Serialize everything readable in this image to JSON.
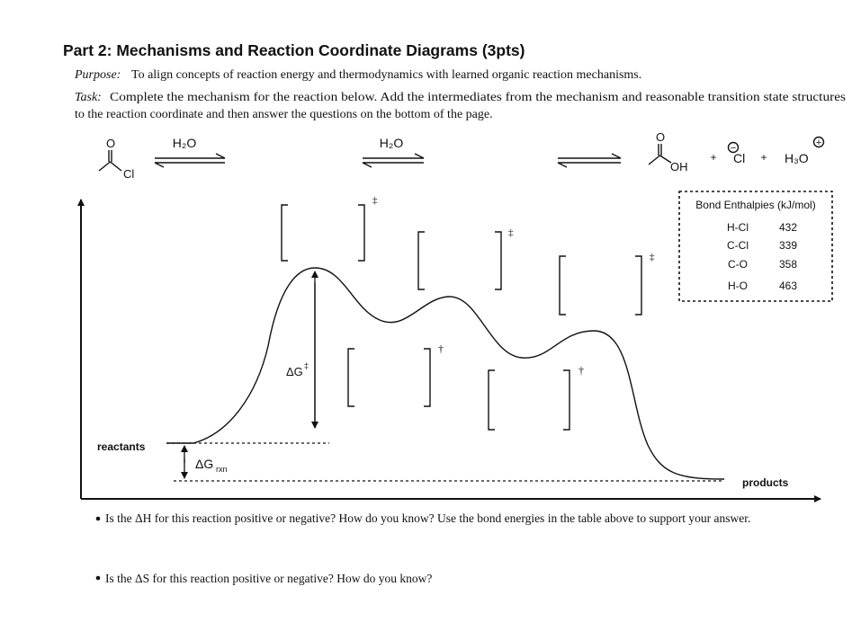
{
  "header": {
    "title": "Part 2: Mechanisms and Reaction Coordinate Diagrams (3pts)"
  },
  "purpose": {
    "label": "Purpose:",
    "text": "To align concepts of reaction energy and thermodynamics with learned organic reaction mechanisms."
  },
  "task": {
    "label": "Task:",
    "line_1": "Complete the mechanism for the reaction below.  Add the intermediates from the mechanism and reasonable transition state structures",
    "line_2": "to the reaction coordinate and then answer the questions on the bottom of the page."
  },
  "reaction": {
    "reactant": {
      "o": "O",
      "cl": "Cl"
    },
    "reagent_1": "H₂O",
    "reagent_2": "H₂O",
    "product": {
      "o": "O",
      "oh": "OH"
    },
    "plus_1": "+",
    "chloride": "Cl",
    "chloride_charge": "−",
    "plus_2": "+",
    "hydronium": "H₃O",
    "hydronium_charge": "+"
  },
  "bond_table": {
    "title": "Bond Enthalpies (kJ/mol)",
    "rows": [
      [
        "H-Cl",
        "432"
      ],
      [
        "C-Cl",
        "339"
      ],
      [
        "C-O",
        "358"
      ],
      [
        "H-O",
        "463"
      ]
    ]
  },
  "diagram": {
    "reactants": "reactants",
    "products": "products",
    "delta_g_ts": {
      "symbol": "ΔG",
      "superscript": "‡"
    },
    "delta_g_rxn": {
      "symbol": "ΔG",
      "subscript": "rxn"
    },
    "ts_marks": [
      "‡",
      "‡",
      "‡"
    ],
    "intermediate_marks": [
      "†",
      "†"
    ]
  },
  "questions": [
    "Is the ΔH for this reaction positive or negative?  How do you know?  Use the bond energies in the table above to support your answer.",
    "Is the ΔS for this reaction positive or negative?  How do you know?"
  ]
}
